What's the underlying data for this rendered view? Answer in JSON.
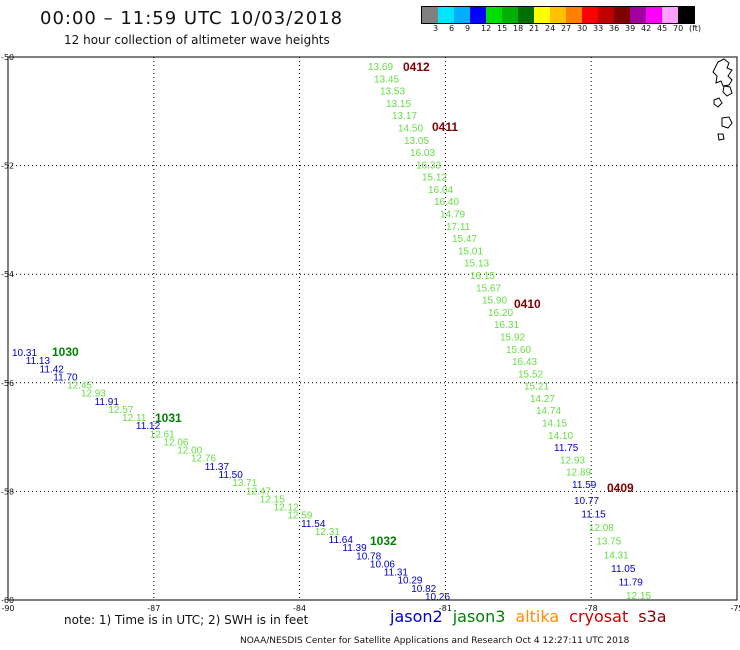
{
  "header": {
    "title": "00:00 – 11:59 UTC 10/03/2018",
    "subtitle": "12 hour collection of altimeter wave heights"
  },
  "colorbar": {
    "colors": [
      "#808080",
      "#00e5ff",
      "#00b0ff",
      "#0000ff",
      "#00dd00",
      "#00b000",
      "#007000",
      "#ffff00",
      "#ffc000",
      "#ff8000",
      "#ff0000",
      "#c00000",
      "#800000",
      "#a000a0",
      "#ff00ff",
      "#ffa0ff",
      "#000000"
    ],
    "labels": [
      "3",
      "6",
      "9",
      "12",
      "15",
      "18",
      "21",
      "24",
      "27",
      "30",
      "33",
      "36",
      "39",
      "42",
      "45",
      "70",
      "(ft)"
    ]
  },
  "axes": {
    "lon_ticks": [
      "-90",
      "-87",
      "-84",
      "-81",
      "-78",
      "-75"
    ],
    "lat_ticks": [
      "-50",
      "-52",
      "-54",
      "-56",
      "-58",
      "-60"
    ]
  },
  "series_colors": {
    "jason2": "#0000c8",
    "jason3": "#008000",
    "altika": "#ff8c00",
    "cryosat": "#cc0000",
    "s3a": "#800000",
    "lightgreen": "#66dd44"
  },
  "pass_labels": [
    {
      "text": "0412",
      "color": "s3a"
    },
    {
      "text": "0411",
      "color": "s3a"
    },
    {
      "text": "0410",
      "color": "s3a"
    },
    {
      "text": "0409",
      "color": "s3a"
    },
    {
      "text": "1030",
      "color": "jason3"
    },
    {
      "text": "1031",
      "color": "jason3"
    },
    {
      "text": "1032",
      "color": "jason3"
    }
  ],
  "track_a_values": [
    "13.69",
    "13.45",
    "13.53",
    "13.15",
    "13.17",
    "14.50",
    "13.05",
    "16.03",
    "16.33",
    "15.12",
    "16.04",
    "16.40",
    "14.79",
    "17.11",
    "15.47",
    "15.01",
    "15.13",
    "16.15",
    "15.67",
    "15.90",
    "16.20",
    "16.31",
    "15.92",
    "15.60",
    "16.43",
    "15.52",
    "15.21",
    "14.27",
    "14.74",
    "14.15",
    "14.10",
    "11.75",
    "12.93",
    "12.89",
    "11.59"
  ],
  "track_a2_values": [
    "10.77",
    "11.15",
    "12.08",
    "13.75",
    "14.31",
    "11.05",
    "11.79",
    "12.15"
  ],
  "track_b_values": [
    "10.31",
    "11.13",
    "11.42",
    "11.70",
    "12.45",
    "12.93",
    "11.91",
    "12.57",
    "12.11",
    "11.12",
    "12.61",
    "12.06",
    "12.00",
    "12.76",
    "11.37",
    "11.50",
    "13.71",
    "12.47",
    "12.15",
    "12.12",
    "12.59",
    "11.54",
    "12.31",
    "11.64",
    "11.39",
    "10.78",
    "10.06",
    "11.31",
    "10.29",
    "10.82",
    "10.26"
  ],
  "footer": {
    "note": "note: 1) Time is in UTC; 2) SWH is in feet",
    "legend": [
      {
        "text": "jason2",
        "color": "jason2"
      },
      {
        "text": "jason3",
        "color": "jason3"
      },
      {
        "text": "altika",
        "color": "altika"
      },
      {
        "text": "cryosat",
        "color": "cryosat"
      },
      {
        "text": "s3a",
        "color": "s3a"
      }
    ],
    "credit": "NOAA/NESDIS Center for Satellite Applications and Research    Oct  4 12:27:11 UTC 2018"
  }
}
